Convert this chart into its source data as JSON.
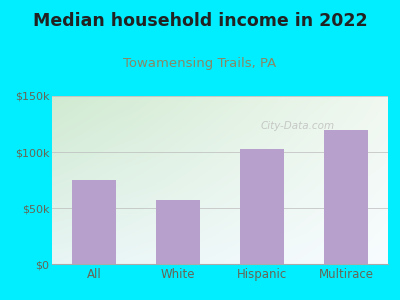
{
  "title": "Median household income in 2022",
  "subtitle": "Towamensing Trails, PA",
  "categories": [
    "All",
    "White",
    "Hispanic",
    "Multirace"
  ],
  "values": [
    75000,
    57000,
    103000,
    120000
  ],
  "bar_color": "#b8a0cc",
  "title_fontsize": 12.5,
  "subtitle_fontsize": 9.5,
  "subtitle_color": "#888866",
  "title_color": "#222222",
  "background_outer": "#00eeff",
  "background_inner_top_left": "#d8edd8",
  "background_inner_top_right": "#e8f5e8",
  "background_inner_bottom": "#f0f8ff",
  "ylim": [
    0,
    150000
  ],
  "yticks": [
    0,
    50000,
    100000,
    150000
  ],
  "ytick_labels": [
    "$0",
    "$50k",
    "$100k",
    "$150k"
  ],
  "watermark": "City-Data.com",
  "watermark_color": "#c0c0c0",
  "axis_color": "#aaaaaa",
  "tick_label_color": "#666655"
}
